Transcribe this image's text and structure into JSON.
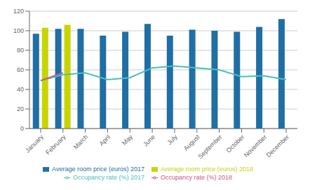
{
  "chart_data": {
    "type": "bar",
    "categories": [
      "January",
      "February",
      "March",
      "April",
      "May",
      "June",
      "July",
      "August",
      "September",
      "October",
      "November",
      "December"
    ],
    "series": [
      {
        "name": "Average room price (euros) 2017",
        "type": "bar",
        "color": "#1f6fa5",
        "values": [
          97,
          102,
          102,
          95,
          99,
          107,
          95,
          101,
          100,
          99,
          104,
          112
        ]
      },
      {
        "name": "Average room price (euros) 2018",
        "type": "bar",
        "color": "#c8d400",
        "values": [
          103,
          106,
          null,
          null,
          null,
          null,
          null,
          null,
          null,
          null,
          null,
          null
        ]
      },
      {
        "name": "Occupancy rate (%) 2017",
        "type": "line",
        "color": "#4bbfbf",
        "values": [
          49,
          55,
          57,
          50,
          52,
          62,
          64,
          62,
          60,
          53,
          54,
          50
        ]
      },
      {
        "name": "Occupancy rate (%) 2018",
        "type": "line",
        "color": "#c9598a",
        "values": [
          49,
          57,
          null,
          null,
          null,
          null,
          null,
          null,
          null,
          null,
          null,
          null
        ]
      }
    ],
    "ylim": [
      0,
      120
    ],
    "yticks": [
      0,
      20,
      40,
      60,
      80,
      100,
      120
    ],
    "grid": true,
    "legend": "bottom"
  }
}
